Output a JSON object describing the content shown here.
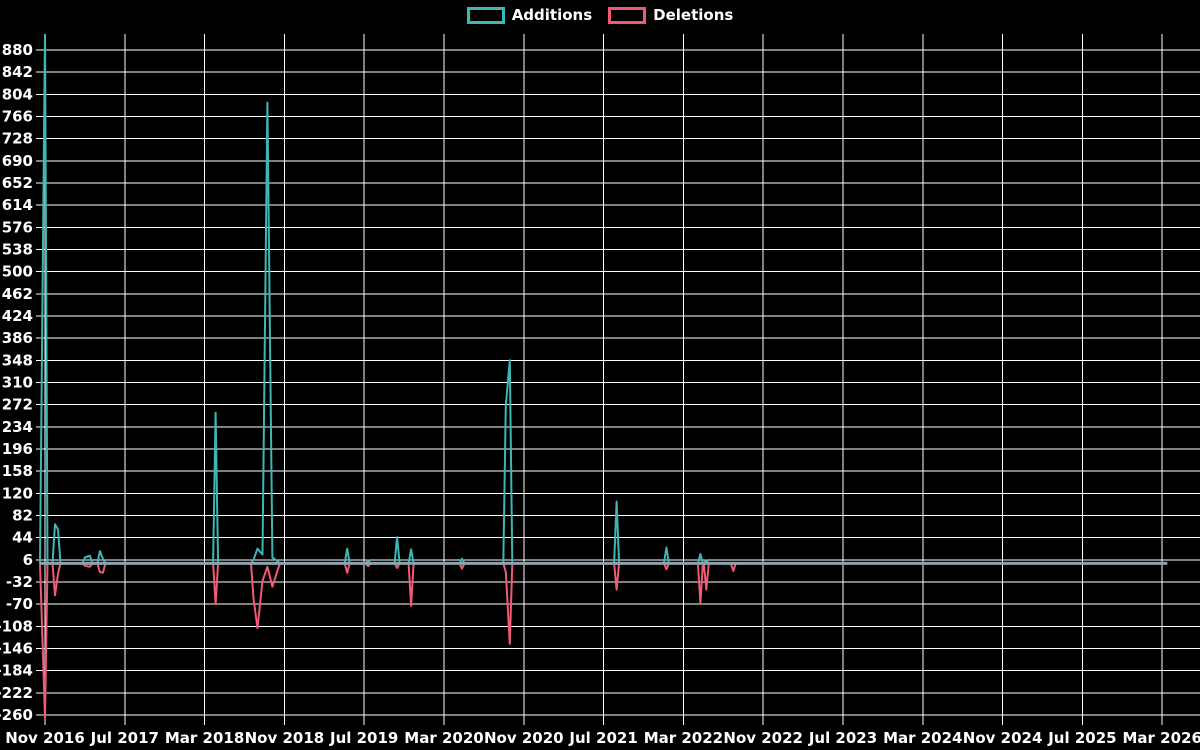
{
  "app": {
    "background_color": "#000000",
    "grid_color": "#ffffff",
    "text_color": "#ffffff"
  },
  "legend": {
    "items": [
      {
        "label": "Additions",
        "color": "#3fb6b6"
      },
      {
        "label": "Deletions",
        "color": "#f05a75"
      }
    ]
  },
  "chart_data": {
    "type": "line",
    "title": "",
    "xlabel": "",
    "ylabel": "",
    "grid": "white gridlines on black background",
    "legend_position": "top-center",
    "baseline_color": "#8ba3ae",
    "ylim": [
      -260,
      906
    ],
    "y_tick_step": 38,
    "y_tick_labels": [
      880,
      842,
      804,
      766,
      728,
      690,
      652,
      614,
      576,
      538,
      500,
      462,
      424,
      386,
      348,
      310,
      272,
      234,
      196,
      158,
      120,
      82,
      44,
      6,
      -32,
      -70,
      -108,
      -146,
      -184,
      -222,
      -260
    ],
    "x_tick_labels": [
      "Nov 2016",
      "Jul 2017",
      "Mar 2018",
      "Nov 2018",
      "Jul 2019",
      "Mar 2020",
      "Nov 2020",
      "Jul 2021",
      "Mar 2022",
      "Nov 2022",
      "Jul 2023",
      "Mar 2024",
      "Nov 2024",
      "Jul 2025",
      "Mar 2026"
    ],
    "x_tick_interval_months": 8,
    "x_range_note": "weekly additions/deletions, Nov 2016 through ~Apr 2026, zero between spikes",
    "end_month_offset": 112.5,
    "series": [
      {
        "name": "Additions",
        "color": "#3fb6b6",
        "value_key": "additions"
      },
      {
        "name": "Deletions",
        "color": "#f05a75",
        "value_key": "deletions"
      }
    ],
    "points": [
      {
        "m": 0.0,
        "date": "2016-11",
        "additions": 910,
        "deletions": -265,
        "clipped": true
      },
      {
        "m": 1.0,
        "date": "2016-12",
        "additions": 67,
        "deletions": -55
      },
      {
        "m": 1.3,
        "date": "2016-12",
        "additions": 58,
        "deletions": -18
      },
      {
        "m": 4.0,
        "date": "2017-03",
        "additions": 10,
        "deletions": -4
      },
      {
        "m": 4.5,
        "date": "2017-03",
        "additions": 13,
        "deletions": -6
      },
      {
        "m": 5.5,
        "date": "2017-04",
        "additions": 21,
        "deletions": -15
      },
      {
        "m": 5.8,
        "date": "2017-05",
        "additions": 8,
        "deletions": -16
      },
      {
        "m": 17.1,
        "date": "2018-04",
        "additions": 258,
        "deletions": -70
      },
      {
        "m": 20.9,
        "date": "2018-08",
        "additions": 6,
        "deletions": -60
      },
      {
        "m": 21.3,
        "date": "2018-08",
        "additions": 25,
        "deletions": -111
      },
      {
        "m": 21.8,
        "date": "2018-09",
        "additions": 15,
        "deletions": -30
      },
      {
        "m": 22.3,
        "date": "2018-09",
        "additions": 790,
        "deletions": -6
      },
      {
        "m": 22.8,
        "date": "2018-09",
        "additions": 10,
        "deletions": -40
      },
      {
        "m": 23.3,
        "date": "2018-10",
        "additions": 4,
        "deletions": -13
      },
      {
        "m": 30.3,
        "date": "2019-05",
        "additions": 25,
        "deletions": -16
      },
      {
        "m": 32.4,
        "date": "2019-07",
        "additions": 5,
        "deletions": -5
      },
      {
        "m": 35.3,
        "date": "2019-10",
        "additions": 45,
        "deletions": -8
      },
      {
        "m": 36.7,
        "date": "2019-11",
        "additions": 24,
        "deletions": -73
      },
      {
        "m": 41.8,
        "date": "2020-04",
        "additions": 8,
        "deletions": -9
      },
      {
        "m": 46.2,
        "date": "2020-09",
        "additions": 270,
        "deletions": -15
      },
      {
        "m": 46.6,
        "date": "2020-09",
        "additions": 348,
        "deletions": -138
      },
      {
        "m": 57.3,
        "date": "2021-08",
        "additions": 106,
        "deletions": -45
      },
      {
        "m": 62.3,
        "date": "2022-01",
        "additions": 27,
        "deletions": -10
      },
      {
        "m": 65.7,
        "date": "2022-04",
        "additions": 16,
        "deletions": -68
      },
      {
        "m": 66.3,
        "date": "2022-05",
        "additions": 5,
        "deletions": -45
      },
      {
        "m": 69.0,
        "date": "2022-08",
        "additions": 1,
        "deletions": -13
      }
    ]
  }
}
